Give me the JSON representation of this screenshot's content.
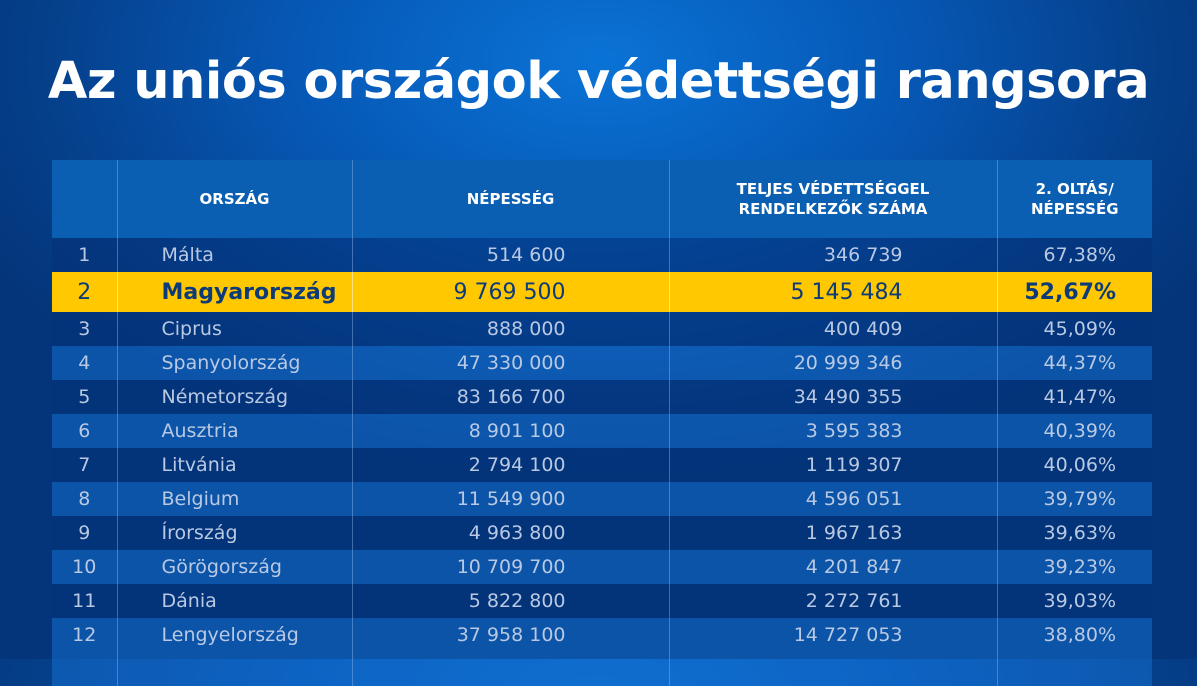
{
  "title": "Az uniós országok védettségi rangsora",
  "colors": {
    "background": "#0657b4",
    "header": "#0b5fb2",
    "highlight": "#ffc800",
    "highlight_text": "#0d3a78",
    "text": "#b9c9e3"
  },
  "chart_data": {
    "type": "table",
    "title": "Az uniós országok védettségi rangsora",
    "columns": [
      "",
      "ORSZÁG",
      "NÉPESSÉG",
      "TELJES VÉDETTSÉGGEL RENDELKEZŐK SZÁMA",
      "2. OLTÁS/ NÉPESSÉG"
    ],
    "highlighted_row": 2,
    "rows": [
      [
        "1",
        "Málta",
        "514 600",
        "346 739",
        "67,38%"
      ],
      [
        "2",
        "Magyarország",
        "9 769 500",
        "5 145 484",
        "52,67%"
      ],
      [
        "3",
        "Ciprus",
        "888 000",
        "400 409",
        "45,09%"
      ],
      [
        "4",
        "Spanyolország",
        "47 330 000",
        "20 999 346",
        "44,37%"
      ],
      [
        "5",
        "Németország",
        "83 166 700",
        "34 490 355",
        "41,47%"
      ],
      [
        "6",
        "Ausztria",
        "8 901 100",
        "3 595 383",
        "40,39%"
      ],
      [
        "7",
        "Litvánia",
        "2 794 100",
        "1 119 307",
        "40,06%"
      ],
      [
        "8",
        "Belgium",
        "11 549 900",
        "4 596 051",
        "39,79%"
      ],
      [
        "9",
        "Írország",
        "4 963 800",
        "1 967 163",
        "39,63%"
      ],
      [
        "10",
        "Görögország",
        "10 709 700",
        "4 201 847",
        "39,23%"
      ],
      [
        "11",
        "Dánia",
        "5 822 800",
        "2 272 761",
        "39,03%"
      ],
      [
        "12",
        "Lengyelország",
        "37 958 100",
        "14 727 053",
        "38,80%"
      ]
    ]
  }
}
